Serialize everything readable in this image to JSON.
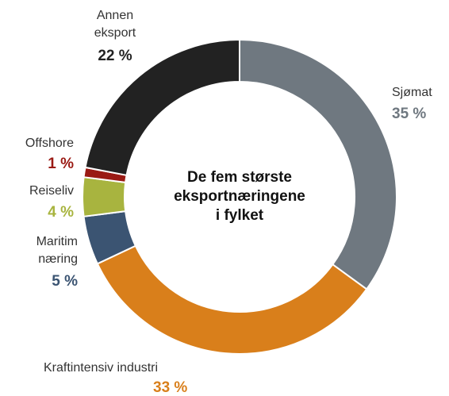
{
  "chart_data": {
    "type": "donut",
    "title": [
      "De fem største",
      "eksportnæringene",
      "i fylket"
    ],
    "categories": [
      "Sjømat",
      "Kraftintensiv industri",
      "Maritim næring",
      "Reiseliv",
      "Offshore",
      "Annen eksport"
    ],
    "values": [
      35,
      33,
      5,
      4,
      1,
      22
    ],
    "value_labels": [
      "35 %",
      "33 %",
      "5 %",
      "4 %",
      "1 %",
      "22 %"
    ],
    "colors": [
      "#6f7880",
      "#d97f1b",
      "#3b5472",
      "#a8b43f",
      "#9a1a14",
      "#222222"
    ]
  }
}
